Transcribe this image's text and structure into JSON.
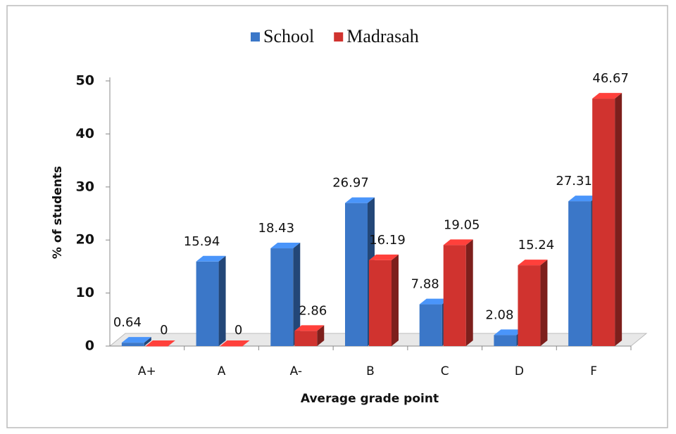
{
  "chart_data": {
    "type": "bar3d",
    "categories": [
      "A+",
      "A",
      "A-",
      "B",
      "C",
      "D",
      "F"
    ],
    "series": [
      {
        "name": "School",
        "color": "#3b77c8",
        "values": [
          0.64,
          15.94,
          18.43,
          26.97,
          7.88,
          2.08,
          27.31
        ]
      },
      {
        "name": "Madrasah",
        "color": "#d0332f",
        "values": [
          0,
          0,
          2.86,
          16.19,
          19.05,
          15.24,
          46.67
        ]
      }
    ],
    "xlabel": "Average grade point",
    "ylabel": "% of students",
    "ylim": [
      0,
      50
    ],
    "yticks": [
      0,
      10,
      20,
      30,
      40,
      50
    ],
    "legend": "top",
    "grid": false
  }
}
